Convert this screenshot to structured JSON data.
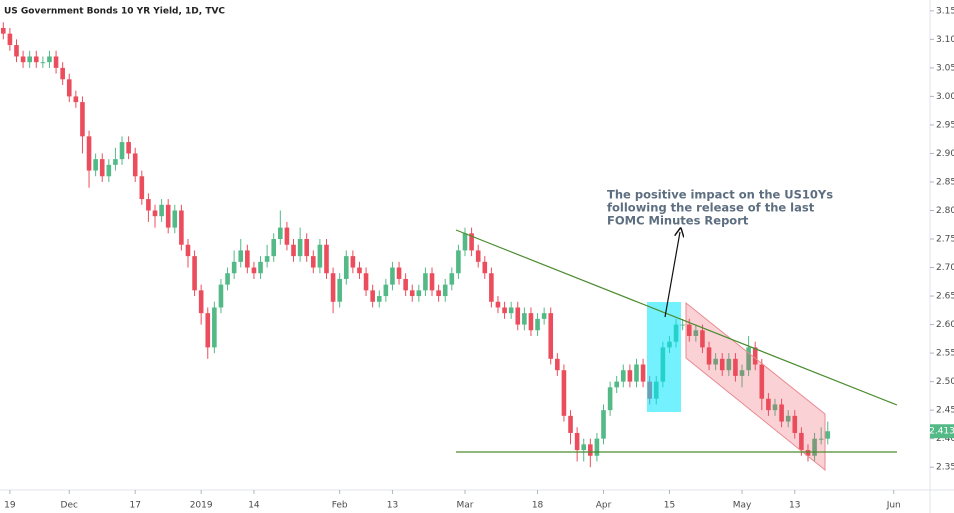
{
  "chart_data": {
    "type": "candlestick",
    "title": "US Government Bonds 10 YR Yield, 1D, TVC",
    "annotation": [
      "The positive impact on the US10Ys",
      "following the release of the last",
      "FOMC Minutes Report"
    ],
    "up_color": "#53b987",
    "down_color": "#eb4d5c",
    "grid": false,
    "xlim": [
      -0.5,
      140.5
    ],
    "xticks": [
      {
        "value": 1,
        "label": "19"
      },
      {
        "value": 10,
        "label": "Dec"
      },
      {
        "value": 20,
        "label": "17"
      },
      {
        "value": 30,
        "label": "2019"
      },
      {
        "value": 38,
        "label": "14"
      },
      {
        "value": 51,
        "label": "Feb"
      },
      {
        "value": 59,
        "label": "13"
      },
      {
        "value": 70,
        "label": "Mar"
      },
      {
        "value": 81,
        "label": "18"
      },
      {
        "value": 91,
        "label": "Apr"
      },
      {
        "value": 101,
        "label": "15"
      },
      {
        "value": 112,
        "label": "May"
      },
      {
        "value": 120,
        "label": "13"
      },
      {
        "value": 135,
        "label": "Jun"
      }
    ],
    "ylim": [
      2.31,
      3.169
    ],
    "yticks": [
      {
        "value": 3.15,
        "label": "3.150"
      },
      {
        "value": 3.1,
        "label": "3.100"
      },
      {
        "value": 3.05,
        "label": "3.050"
      },
      {
        "value": 3.0,
        "label": "3.000"
      },
      {
        "value": 2.95,
        "label": "2.950"
      },
      {
        "value": 2.9,
        "label": "2.900"
      },
      {
        "value": 2.85,
        "label": "2.850"
      },
      {
        "value": 2.8,
        "label": "2.800"
      },
      {
        "value": 2.75,
        "label": "2.750"
      },
      {
        "value": 2.7,
        "label": "2.700"
      },
      {
        "value": 2.65,
        "label": "2.650"
      },
      {
        "value": 2.6,
        "label": "2.600"
      },
      {
        "value": 2.55,
        "label": "2.550"
      },
      {
        "value": 2.5,
        "label": "2.500"
      },
      {
        "value": 2.45,
        "label": "2.450"
      },
      {
        "value": 2.4,
        "label": "2.400"
      },
      {
        "value": 2.35,
        "label": "2.350"
      }
    ],
    "open": [
      3.12,
      3.11,
      3.09,
      3.07,
      3.06,
      3.07,
      3.06,
      3.06,
      3.07,
      3.05,
      3.03,
      3.0,
      2.99,
      2.93,
      2.87,
      2.89,
      2.86,
      2.88,
      2.89,
      2.92,
      2.9,
      2.86,
      2.82,
      2.8,
      2.79,
      2.81,
      2.77,
      2.8,
      2.74,
      2.72,
      2.66,
      2.62,
      2.56,
      2.63,
      2.67,
      2.69,
      2.71,
      2.73,
      2.7,
      2.69,
      2.71,
      2.72,
      2.75,
      2.77,
      2.74,
      2.72,
      2.75,
      2.72,
      2.7,
      2.74,
      2.69,
      2.64,
      2.68,
      2.72,
      2.7,
      2.69,
      2.66,
      2.64,
      2.65,
      2.67,
      2.7,
      2.68,
      2.66,
      2.65,
      2.66,
      2.69,
      2.66,
      2.65,
      2.67,
      2.69,
      2.73,
      2.76,
      2.73,
      2.71,
      2.69,
      2.64,
      2.63,
      2.62,
      2.63,
      2.6,
      2.62,
      2.59,
      2.61,
      2.62,
      2.54,
      2.52,
      2.44,
      2.41,
      2.38,
      2.39,
      2.37,
      2.4,
      2.45,
      2.49,
      2.5,
      2.52,
      2.5,
      2.53,
      2.5,
      2.47,
      2.5,
      2.56,
      2.57,
      2.6,
      2.6,
      2.58,
      2.59,
      2.56,
      2.53,
      2.54,
      2.52,
      2.54,
      2.51,
      2.52,
      2.56,
      2.53,
      2.47,
      2.45,
      2.46,
      2.43,
      2.44,
      2.41,
      2.38,
      2.37,
      2.4,
      2.4
    ],
    "high": [
      3.13,
      3.12,
      3.1,
      3.08,
      3.08,
      3.08,
      3.07,
      3.08,
      3.08,
      3.06,
      3.04,
      3.01,
      3.0,
      2.94,
      2.9,
      2.9,
      2.89,
      2.91,
      2.93,
      2.93,
      2.91,
      2.87,
      2.83,
      2.81,
      2.82,
      2.82,
      2.81,
      2.81,
      2.75,
      2.73,
      2.67,
      2.63,
      2.64,
      2.68,
      2.7,
      2.73,
      2.75,
      2.74,
      2.71,
      2.72,
      2.74,
      2.76,
      2.8,
      2.78,
      2.75,
      2.77,
      2.76,
      2.73,
      2.75,
      2.75,
      2.7,
      2.69,
      2.73,
      2.73,
      2.71,
      2.7,
      2.67,
      2.66,
      2.68,
      2.71,
      2.71,
      2.69,
      2.67,
      2.67,
      2.7,
      2.7,
      2.67,
      2.68,
      2.7,
      2.74,
      2.77,
      2.77,
      2.74,
      2.72,
      2.7,
      2.65,
      2.64,
      2.64,
      2.64,
      2.63,
      2.63,
      2.62,
      2.63,
      2.63,
      2.55,
      2.53,
      2.45,
      2.42,
      2.4,
      2.4,
      2.41,
      2.46,
      2.5,
      2.51,
      2.53,
      2.53,
      2.54,
      2.54,
      2.51,
      2.51,
      2.57,
      2.58,
      2.61,
      2.61,
      2.61,
      2.6,
      2.6,
      2.57,
      2.55,
      2.55,
      2.55,
      2.55,
      2.53,
      2.58,
      2.57,
      2.54,
      2.48,
      2.47,
      2.47,
      2.45,
      2.45,
      2.42,
      2.39,
      2.41,
      2.42,
      2.43
    ],
    "low": [
      3.1,
      3.08,
      3.06,
      3.05,
      3.05,
      3.05,
      3.05,
      3.05,
      3.04,
      3.02,
      2.99,
      2.98,
      2.9,
      2.84,
      2.86,
      2.85,
      2.85,
      2.87,
      2.88,
      2.89,
      2.85,
      2.81,
      2.78,
      2.77,
      2.78,
      2.76,
      2.76,
      2.73,
      2.7,
      2.65,
      2.6,
      2.54,
      2.55,
      2.62,
      2.66,
      2.68,
      2.7,
      2.69,
      2.68,
      2.68,
      2.7,
      2.71,
      2.74,
      2.73,
      2.71,
      2.71,
      2.71,
      2.69,
      2.69,
      2.68,
      2.62,
      2.63,
      2.67,
      2.69,
      2.68,
      2.65,
      2.63,
      2.63,
      2.64,
      2.66,
      2.67,
      2.65,
      2.64,
      2.64,
      2.65,
      2.65,
      2.64,
      2.64,
      2.66,
      2.68,
      2.72,
      2.72,
      2.7,
      2.68,
      2.63,
      2.62,
      2.61,
      2.61,
      2.59,
      2.59,
      2.58,
      2.58,
      2.6,
      2.53,
      2.51,
      2.43,
      2.39,
      2.36,
      2.36,
      2.35,
      2.36,
      2.39,
      2.44,
      2.48,
      2.49,
      2.49,
      2.49,
      2.49,
      2.46,
      2.46,
      2.49,
      2.55,
      2.56,
      2.59,
      2.57,
      2.57,
      2.55,
      2.52,
      2.52,
      2.51,
      2.51,
      2.5,
      2.49,
      2.51,
      2.52,
      2.45,
      2.44,
      2.44,
      2.42,
      2.42,
      2.4,
      2.37,
      2.36,
      2.36,
      2.39,
      2.39
    ],
    "close": [
      3.11,
      3.09,
      3.07,
      3.06,
      3.07,
      3.06,
      3.06,
      3.07,
      3.05,
      3.03,
      3.0,
      2.99,
      2.93,
      2.87,
      2.89,
      2.86,
      2.88,
      2.89,
      2.92,
      2.9,
      2.86,
      2.82,
      2.8,
      2.79,
      2.81,
      2.77,
      2.8,
      2.74,
      2.72,
      2.66,
      2.62,
      2.56,
      2.63,
      2.67,
      2.69,
      2.71,
      2.73,
      2.7,
      2.69,
      2.71,
      2.72,
      2.75,
      2.77,
      2.74,
      2.72,
      2.75,
      2.72,
      2.7,
      2.74,
      2.69,
      2.64,
      2.68,
      2.72,
      2.7,
      2.69,
      2.66,
      2.64,
      2.65,
      2.67,
      2.7,
      2.68,
      2.66,
      2.65,
      2.66,
      2.69,
      2.66,
      2.65,
      2.67,
      2.69,
      2.73,
      2.76,
      2.73,
      2.71,
      2.69,
      2.64,
      2.63,
      2.62,
      2.63,
      2.6,
      2.62,
      2.59,
      2.61,
      2.62,
      2.54,
      2.52,
      2.44,
      2.41,
      2.38,
      2.39,
      2.37,
      2.4,
      2.45,
      2.49,
      2.5,
      2.52,
      2.5,
      2.53,
      2.5,
      2.47,
      2.5,
      2.56,
      2.57,
      2.6,
      2.6,
      2.58,
      2.59,
      2.56,
      2.53,
      2.54,
      2.52,
      2.54,
      2.51,
      2.52,
      2.56,
      2.53,
      2.47,
      2.45,
      2.46,
      2.43,
      2.44,
      2.41,
      2.38,
      2.37,
      2.4,
      2.4,
      2.413
    ]
  }
}
